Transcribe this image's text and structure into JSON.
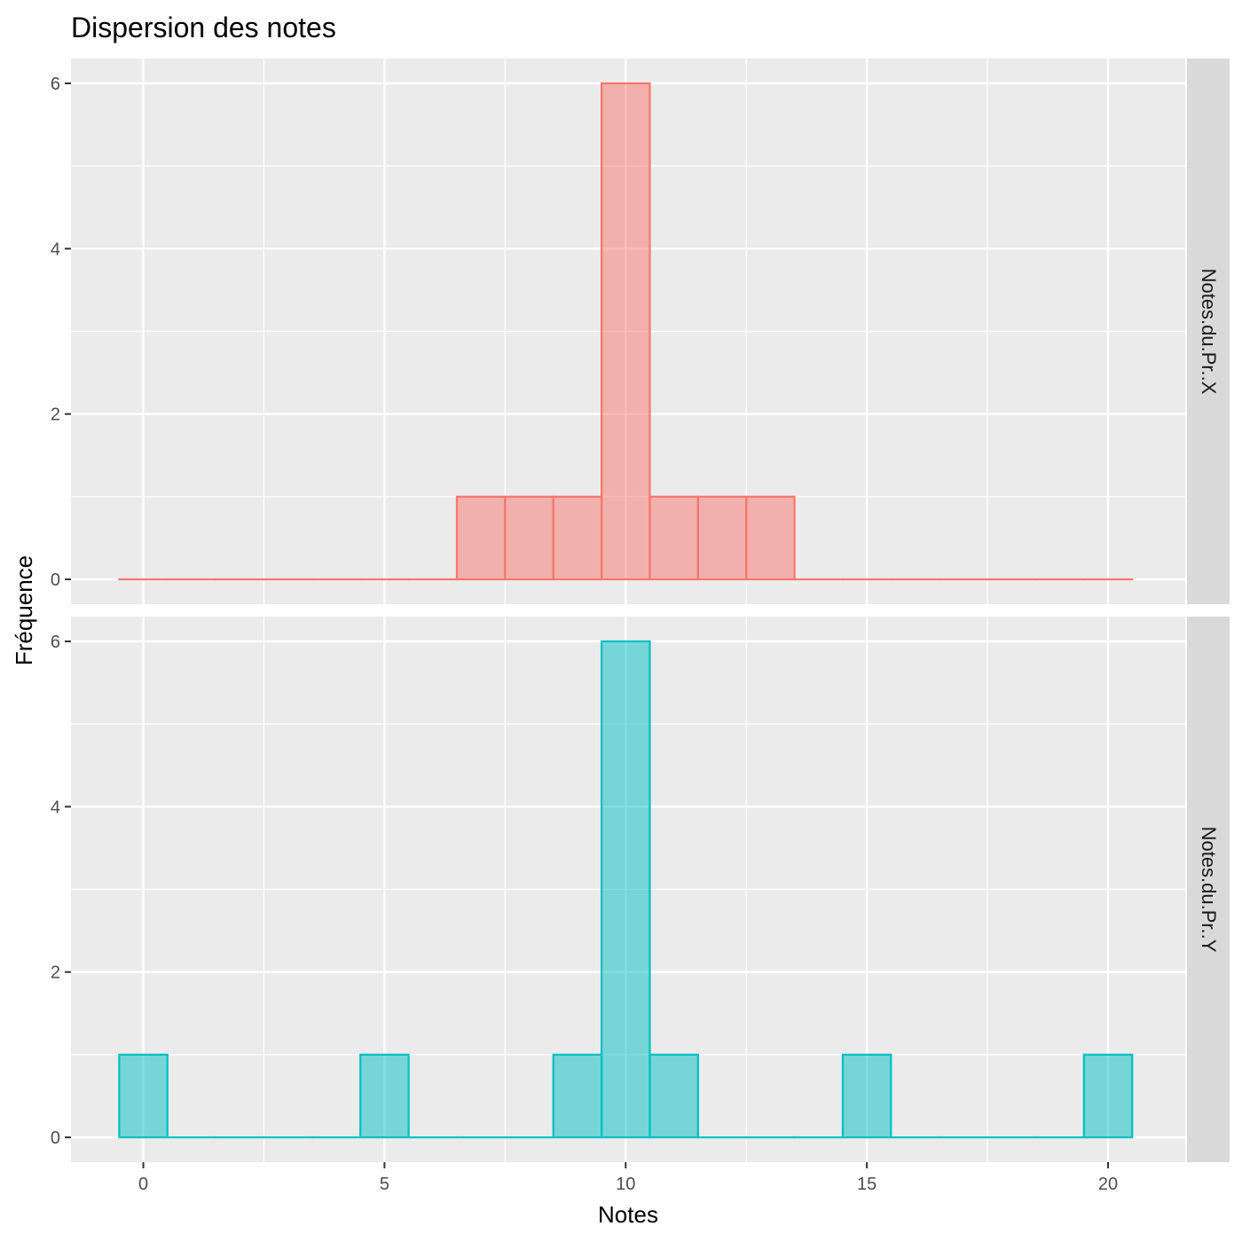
{
  "chart_data": {
    "type": "bar",
    "subtype": "faceted-histogram",
    "title": "Dispersion des notes",
    "xlabel": "Notes",
    "ylabel": "Fréquence",
    "xlim": [
      -0.5,
      20.5
    ],
    "ylim": [
      0,
      6
    ],
    "x_ticks": [
      0,
      5,
      10,
      15,
      20
    ],
    "y_ticks": [
      0,
      2,
      4,
      6
    ],
    "grid": true,
    "legend": "none",
    "bin_width": 1,
    "x": [
      0,
      1,
      2,
      3,
      4,
      5,
      6,
      7,
      8,
      9,
      10,
      11,
      12,
      13,
      14,
      15,
      16,
      17,
      18,
      19,
      20
    ],
    "series": [
      {
        "name": "Notes.du.Pr..X",
        "color": "#F8766D",
        "fill": "#F8766D",
        "values": [
          0,
          0,
          0,
          0,
          0,
          0,
          0,
          1,
          1,
          1,
          6,
          1,
          1,
          1,
          0,
          0,
          0,
          0,
          0,
          0,
          0
        ]
      },
      {
        "name": "Notes.du.Pr..Y",
        "color": "#00BFC4",
        "fill": "#00BFC4",
        "values": [
          1,
          0,
          0,
          0,
          0,
          1,
          0,
          0,
          0,
          1,
          6,
          1,
          0,
          0,
          0,
          1,
          0,
          0,
          0,
          0,
          1
        ]
      }
    ]
  }
}
